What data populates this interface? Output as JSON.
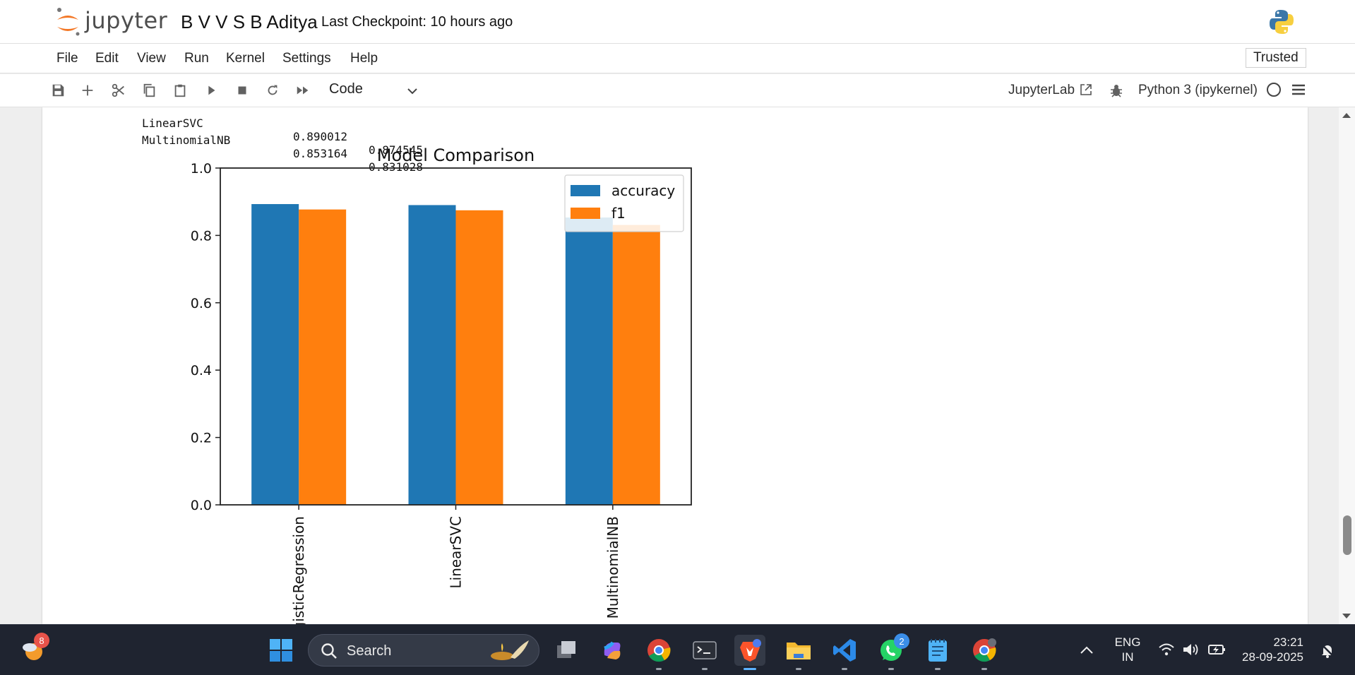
{
  "header": {
    "logo_text": "jupyter",
    "notebook_title": "B V V S B Aditya",
    "checkpoint": "Last Checkpoint: 10 hours ago"
  },
  "menu": {
    "items": [
      "File",
      "Edit",
      "View",
      "Run",
      "Kernel",
      "Settings",
      "Help"
    ],
    "trusted": "Trusted"
  },
  "toolbar": {
    "cell_type": "Code",
    "jupyterlab_label": "JupyterLab",
    "kernel_name": "Python 3 (ipykernel)",
    "icons": [
      "save-icon",
      "add-cell-icon",
      "cut-icon",
      "copy-icon",
      "paste-icon",
      "run-icon",
      "stop-icon",
      "restart-icon",
      "fast-forward-icon"
    ]
  },
  "output": {
    "table_rows": [
      {
        "model": "LinearSVC",
        "accuracy": "0.890012",
        "f1": "0.874545"
      },
      {
        "model": "MultinomialNB",
        "accuracy": "0.853164",
        "f1": "0.831028"
      }
    ]
  },
  "chart_data": {
    "type": "bar",
    "title": "Model Comparison",
    "categories": [
      "LogisticRegression",
      "LinearSVC",
      "MultinomialNB"
    ],
    "series": [
      {
        "name": "accuracy",
        "values": [
          0.893,
          0.890012,
          0.853164
        ],
        "color": "#1f77b4"
      },
      {
        "name": "f1",
        "values": [
          0.877,
          0.874545,
          0.831028
        ],
        "color": "#ff7f0e"
      }
    ],
    "ylim": [
      0,
      1.0
    ],
    "yticks": [
      "0.0",
      "0.2",
      "0.4",
      "0.6",
      "0.8",
      "1.0"
    ],
    "legend_position": "top-right",
    "grid": false,
    "xlabel": "",
    "ylabel": ""
  },
  "taskbar": {
    "weather_badge": "8",
    "search_placeholder": "Search",
    "whatsapp_badge": "2",
    "language": "ENG",
    "region": "IN",
    "time": "23:21",
    "date": "28-09-2025"
  }
}
